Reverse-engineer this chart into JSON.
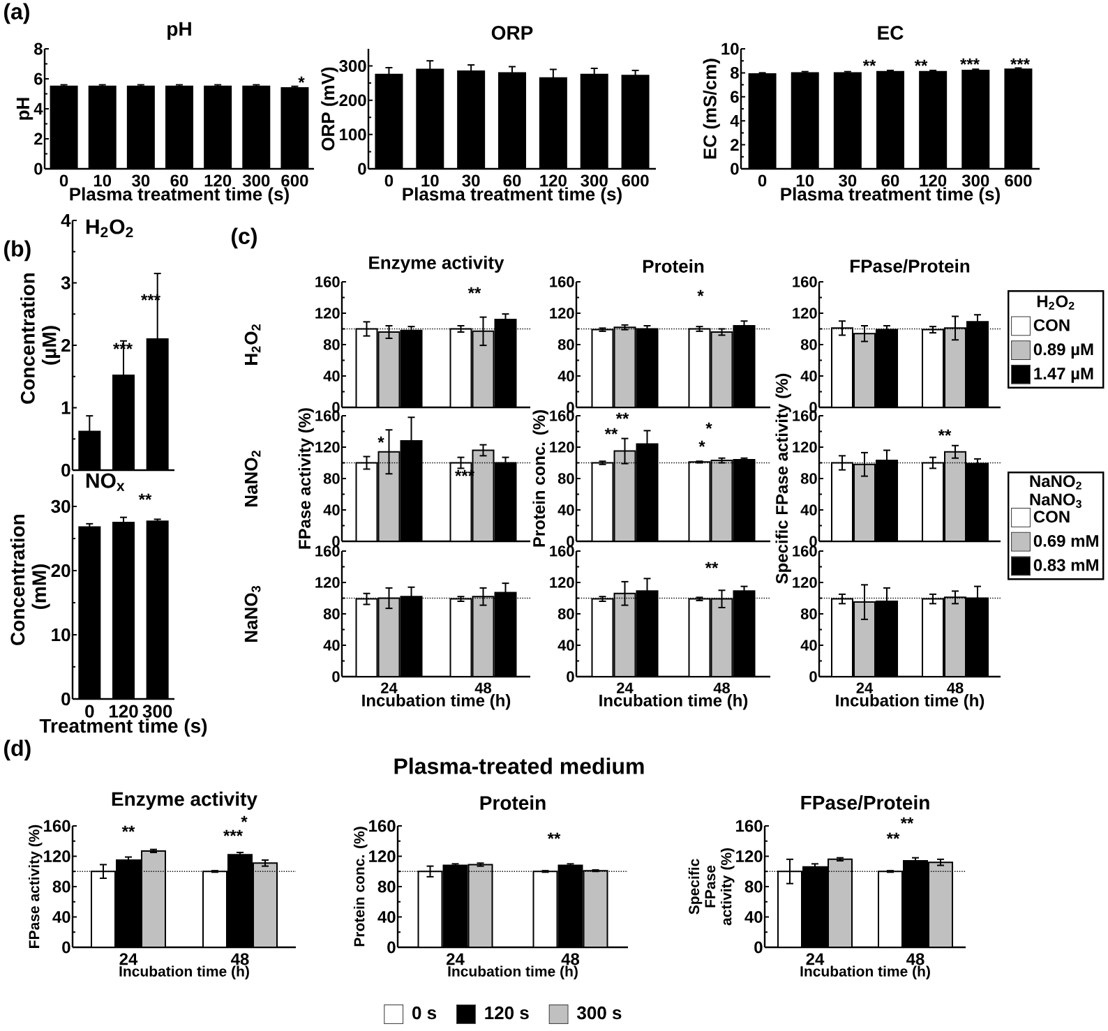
{
  "chart_data": [
    {
      "type": "bar",
      "title": "pH",
      "xlabel": "Plasma treatment time (s)",
      "ylabel": "pH",
      "categories": [
        "0",
        "10",
        "30",
        "60",
        "120",
        "300",
        "600"
      ],
      "values": [
        5.5,
        5.5,
        5.5,
        5.5,
        5.5,
        5.5,
        5.4
      ],
      "errors": [
        0.1,
        0.1,
        0.1,
        0.1,
        0.1,
        0.1,
        0.1
      ],
      "color": "#000000",
      "ylim": [
        0,
        8
      ],
      "yticks": [
        0,
        2,
        4,
        6,
        8
      ],
      "annotations": [
        "(a)",
        "*"
      ]
    },
    {
      "type": "bar",
      "title": "ORP",
      "xlabel": "Plasma treatment time (s)",
      "ylabel": "ORP (mV)",
      "categories": [
        "0",
        "10",
        "30",
        "60",
        "120",
        "300",
        "600"
      ],
      "values": [
        275,
        290,
        285,
        280,
        265,
        275,
        272
      ],
      "errors": [
        20,
        25,
        18,
        18,
        25,
        18,
        15
      ],
      "color": "#000000",
      "ylim": [
        0,
        350
      ],
      "yticks": [
        0,
        100,
        200,
        300
      ]
    },
    {
      "type": "bar",
      "title": "EC",
      "xlabel": "Plasma treatment time (s)",
      "ylabel": "EC (mS/cm)",
      "categories": [
        "0",
        "10",
        "30",
        "60",
        "120",
        "300",
        "600"
      ],
      "values": [
        7.9,
        8.0,
        8.0,
        8.1,
        8.1,
        8.2,
        8.3
      ],
      "errors": [
        0.1,
        0.1,
        0.1,
        0.1,
        0.1,
        0.1,
        0.1
      ],
      "color": "#000000",
      "ylim": [
        0,
        10
      ],
      "yticks": [
        0,
        2,
        4,
        6,
        8,
        10
      ],
      "annotations": [
        "**",
        "**",
        "***",
        "***"
      ]
    },
    {
      "type": "bar",
      "title": "H$_{2}$O$_{2}$",
      "ylabel": "Concentration (µM)",
      "categories": [
        "0",
        "120",
        "300"
      ],
      "values": [
        0.62,
        1.52,
        2.1
      ],
      "errors": [
        0.25,
        0.55,
        1.05
      ],
      "color": "#000000",
      "ylim": [
        0,
        4
      ],
      "yticks": [
        0,
        1,
        2,
        3,
        4
      ],
      "tick_labels": "y",
      "annotations": [
        "(b)",
        "***",
        "***"
      ]
    },
    {
      "type": "bar",
      "title": "NO$_{x}$",
      "xlabel": "Treatment time (s)",
      "ylabel": "Concentration (mM)",
      "categories": [
        "0",
        "120",
        "300"
      ],
      "values": [
        26.8,
        27.5,
        27.7
      ],
      "errors": [
        0.5,
        0.8,
        0.3
      ],
      "color": "#000000",
      "ylim": [
        0,
        35
      ],
      "yticks": [
        0,
        10,
        20,
        30
      ],
      "annotations": [
        "**"
      ]
    },
    {
      "type": "bar",
      "title": "Enzyme activity",
      "categories": [
        "24",
        "48"
      ],
      "tick_labels": "y",
      "ylim": [
        0,
        160
      ],
      "yticks": [
        0,
        40,
        80,
        120,
        160
      ],
      "ref_lines": [
        {
          "axis": "y",
          "value": 100,
          "line_style": "dotted"
        }
      ],
      "series": [
        {
          "color": "#ffffff",
          "values": [
            100,
            100
          ],
          "errors": [
            9,
            4
          ]
        },
        {
          "color": "#c0c0c0",
          "values": [
            96,
            97
          ],
          "errors": [
            8,
            18
          ]
        },
        {
          "color": "#000000",
          "values": [
            98,
            112
          ],
          "errors": [
            5,
            7
          ]
        }
      ],
      "annotations": [
        "(c)",
        "H$_{2}$O$_{2}$",
        "**"
      ]
    },
    {
      "type": "bar",
      "title": "Protein",
      "categories": [
        "24",
        "48"
      ],
      "tick_labels": "y",
      "ylim": [
        0,
        160
      ],
      "yticks": [
        0,
        40,
        80,
        120,
        160
      ],
      "ref_lines": [
        {
          "axis": "y",
          "value": 100,
          "line_style": "dotted"
        }
      ],
      "series": [
        {
          "color": "#ffffff",
          "values": [
            99,
            100
          ],
          "errors": [
            2,
            3
          ]
        },
        {
          "color": "#c0c0c0",
          "values": [
            102,
            96
          ],
          "errors": [
            3,
            4
          ]
        },
        {
          "color": "#000000",
          "values": [
            100,
            104
          ],
          "errors": [
            4,
            6
          ]
        }
      ],
      "annotations": [
        "*"
      ]
    },
    {
      "type": "bar",
      "title": "FPase/Protein",
      "categories": [
        "24",
        "48"
      ],
      "tick_labels": "y",
      "ylim": [
        0,
        160
      ],
      "yticks": [
        0,
        40,
        80,
        120,
        160
      ],
      "ref_lines": [
        {
          "axis": "y",
          "value": 100,
          "line_style": "dotted"
        }
      ],
      "legend": "right",
      "legend_title": "H$_{2}$O$_{2}$",
      "series": [
        {
          "name": "CON",
          "color": "#ffffff",
          "values": [
            101,
            99
          ],
          "errors": [
            9,
            4
          ]
        },
        {
          "name": "0.89 µM",
          "color": "#c0c0c0",
          "values": [
            94,
            101
          ],
          "errors": [
            10,
            15
          ]
        },
        {
          "name": "1.47 µM",
          "color": "#000000",
          "values": [
            99,
            109
          ],
          "errors": [
            5,
            9
          ]
        }
      ]
    },
    {
      "type": "bar",
      "ylabel": "FPase activity (%)",
      "categories": [
        "24",
        "48"
      ],
      "tick_labels": "y",
      "ylim": [
        0,
        160
      ],
      "yticks": [
        0,
        40,
        80,
        120,
        160
      ],
      "ref_lines": [
        {
          "axis": "y",
          "value": 100,
          "line_style": "dotted"
        }
      ],
      "series": [
        {
          "color": "#ffffff",
          "values": [
            100,
            100
          ],
          "errors": [
            8,
            7
          ]
        },
        {
          "color": "#c0c0c0",
          "values": [
            114,
            116
          ],
          "errors": [
            28,
            7
          ]
        },
        {
          "color": "#000000",
          "values": [
            128,
            100
          ],
          "errors": [
            30,
            7
          ]
        }
      ],
      "annotations": [
        "NaNO$_{2}$",
        "*",
        "***"
      ]
    },
    {
      "type": "bar",
      "ylabel": "Protein conc. (%)",
      "categories": [
        "24",
        "48"
      ],
      "tick_labels": "y",
      "ylim": [
        0,
        160
      ],
      "yticks": [
        0,
        40,
        80,
        120,
        160
      ],
      "ref_lines": [
        {
          "axis": "y",
          "value": 100,
          "line_style": "dotted"
        }
      ],
      "series": [
        {
          "color": "#ffffff",
          "values": [
            100,
            101
          ],
          "errors": [
            2,
            1
          ]
        },
        {
          "color": "#c0c0c0",
          "values": [
            115,
            103
          ],
          "errors": [
            16,
            3
          ]
        },
        {
          "color": "#000000",
          "values": [
            124,
            104
          ],
          "errors": [
            17,
            2
          ]
        }
      ],
      "annotations": [
        "**",
        "**",
        "*",
        "*"
      ]
    },
    {
      "type": "bar",
      "ylabel": "Specific FPase activity (%)",
      "categories": [
        "24",
        "48"
      ],
      "tick_labels": "y",
      "ylim": [
        0,
        160
      ],
      "yticks": [
        0,
        40,
        80,
        120,
        160
      ],
      "ref_lines": [
        {
          "axis": "y",
          "value": 100,
          "line_style": "dotted"
        }
      ],
      "legend": "right",
      "legend_title": "NaNO$_{2}$ NaNO$_{3}$",
      "series": [
        {
          "name": "CON",
          "color": "#ffffff",
          "values": [
            100,
            100
          ],
          "errors": [
            9,
            7
          ]
        },
        {
          "name": "0.69 mM",
          "color": "#c0c0c0",
          "values": [
            98,
            114
          ],
          "errors": [
            15,
            8
          ]
        },
        {
          "name": "0.83 mM",
          "color": "#000000",
          "values": [
            103,
            99
          ],
          "errors": [
            13,
            6
          ]
        }
      ],
      "annotations": [
        "**"
      ]
    },
    {
      "type": "bar",
      "xlabel": "Incubation time (h)",
      "categories": [
        "24",
        "48"
      ],
      "ylim": [
        0,
        160
      ],
      "yticks": [
        0,
        40,
        80,
        120,
        160
      ],
      "ref_lines": [
        {
          "axis": "y",
          "value": 100,
          "line_style": "dotted"
        }
      ],
      "series": [
        {
          "color": "#ffffff",
          "values": [
            99,
            99
          ],
          "errors": [
            7,
            3
          ]
        },
        {
          "color": "#c0c0c0",
          "values": [
            100,
            102
          ],
          "errors": [
            13,
            11
          ]
        },
        {
          "color": "#000000",
          "values": [
            102,
            107
          ],
          "errors": [
            12,
            12
          ]
        }
      ],
      "annotations": [
        "NaNO$_{3}$"
      ]
    },
    {
      "type": "bar",
      "xlabel": "Incubation time (h)",
      "categories": [
        "24",
        "48"
      ],
      "ylim": [
        0,
        160
      ],
      "yticks": [
        0,
        40,
        80,
        120,
        160
      ],
      "ref_lines": [
        {
          "axis": "y",
          "value": 100,
          "line_style": "dotted"
        }
      ],
      "series": [
        {
          "color": "#ffffff",
          "values": [
            99,
            99
          ],
          "errors": [
            3,
            2
          ]
        },
        {
          "color": "#c0c0c0",
          "values": [
            106,
            99
          ],
          "errors": [
            15,
            11
          ]
        },
        {
          "color": "#000000",
          "values": [
            109,
            109
          ],
          "errors": [
            16,
            6
          ]
        }
      ],
      "annotations": [
        "**"
      ]
    },
    {
      "type": "bar",
      "xlabel": "Incubation time (h)",
      "categories": [
        "24",
        "48"
      ],
      "ylim": [
        0,
        160
      ],
      "yticks": [
        0,
        40,
        80,
        120,
        160
      ],
      "ref_lines": [
        {
          "axis": "y",
          "value": 100,
          "line_style": "dotted"
        }
      ],
      "series": [
        {
          "color": "#ffffff",
          "values": [
            99,
            99
          ],
          "errors": [
            6,
            6
          ]
        },
        {
          "color": "#c0c0c0",
          "values": [
            95,
            101
          ],
          "errors": [
            22,
            8
          ]
        },
        {
          "color": "#000000",
          "values": [
            96,
            100
          ],
          "errors": [
            17,
            15
          ]
        }
      ]
    },
    {
      "type": "bar",
      "title": "Enzyme activity",
      "xlabel": "Incubation time (h)",
      "ylabel": "FPase activity (%)",
      "categories": [
        "24",
        "48"
      ],
      "ylim": [
        0,
        160
      ],
      "yticks": [
        0,
        40,
        80,
        120,
        160
      ],
      "ref_lines": [
        {
          "axis": "y",
          "value": 100,
          "line_style": "dotted"
        }
      ],
      "series": [
        {
          "color": "#ffffff",
          "values": [
            100,
            100
          ],
          "errors": [
            9,
            1
          ]
        },
        {
          "color": "#000000",
          "values": [
            115,
            122
          ],
          "errors": [
            4,
            3
          ]
        },
        {
          "color": "#c0c0c0",
          "values": [
            127,
            111
          ],
          "errors": [
            2,
            4
          ]
        }
      ],
      "annotations": [
        "(d)",
        "**",
        "***",
        "*"
      ]
    },
    {
      "type": "bar",
      "title": "Protein",
      "xlabel": "Incubation time (h)",
      "ylabel": "Protein conc. (%)",
      "categories": [
        "24",
        "48"
      ],
      "ylim": [
        0,
        160
      ],
      "yticks": [
        0,
        40,
        80,
        120,
        160
      ],
      "ref_lines": [
        {
          "axis": "y",
          "value": 100,
          "line_style": "dotted"
        }
      ],
      "legend": "bottom",
      "series": [
        {
          "name": "0 s",
          "color": "#ffffff",
          "values": [
            100,
            100
          ],
          "errors": [
            7,
            1
          ]
        },
        {
          "name": "120 s",
          "color": "#000000",
          "values": [
            108,
            108
          ],
          "errors": [
            2,
            2
          ]
        },
        {
          "name": "300 s",
          "color": "#c0c0c0",
          "values": [
            109,
            101
          ],
          "errors": [
            2,
            1
          ]
        }
      ],
      "annotations": [
        "Plasma-treated medium",
        "**"
      ]
    },
    {
      "type": "bar",
      "title": "FPase/Protein",
      "xlabel": "Incubation time (h)",
      "ylabel": "Specific FPase activity (%)",
      "categories": [
        "24",
        "48"
      ],
      "ylim": [
        0,
        160
      ],
      "yticks": [
        0,
        40,
        80,
        120,
        160
      ],
      "ref_lines": [
        {
          "axis": "y",
          "value": 100,
          "line_style": "dotted"
        }
      ],
      "series": [
        {
          "color": "#ffffff",
          "values": [
            100,
            100
          ],
          "errors": [
            16,
            1
          ]
        },
        {
          "color": "#000000",
          "values": [
            106,
            114
          ],
          "errors": [
            4,
            4
          ]
        },
        {
          "color": "#c0c0c0",
          "values": [
            116,
            112
          ],
          "errors": [
            2,
            4
          ]
        }
      ],
      "annotations": [
        "**",
        "**"
      ]
    }
  ]
}
